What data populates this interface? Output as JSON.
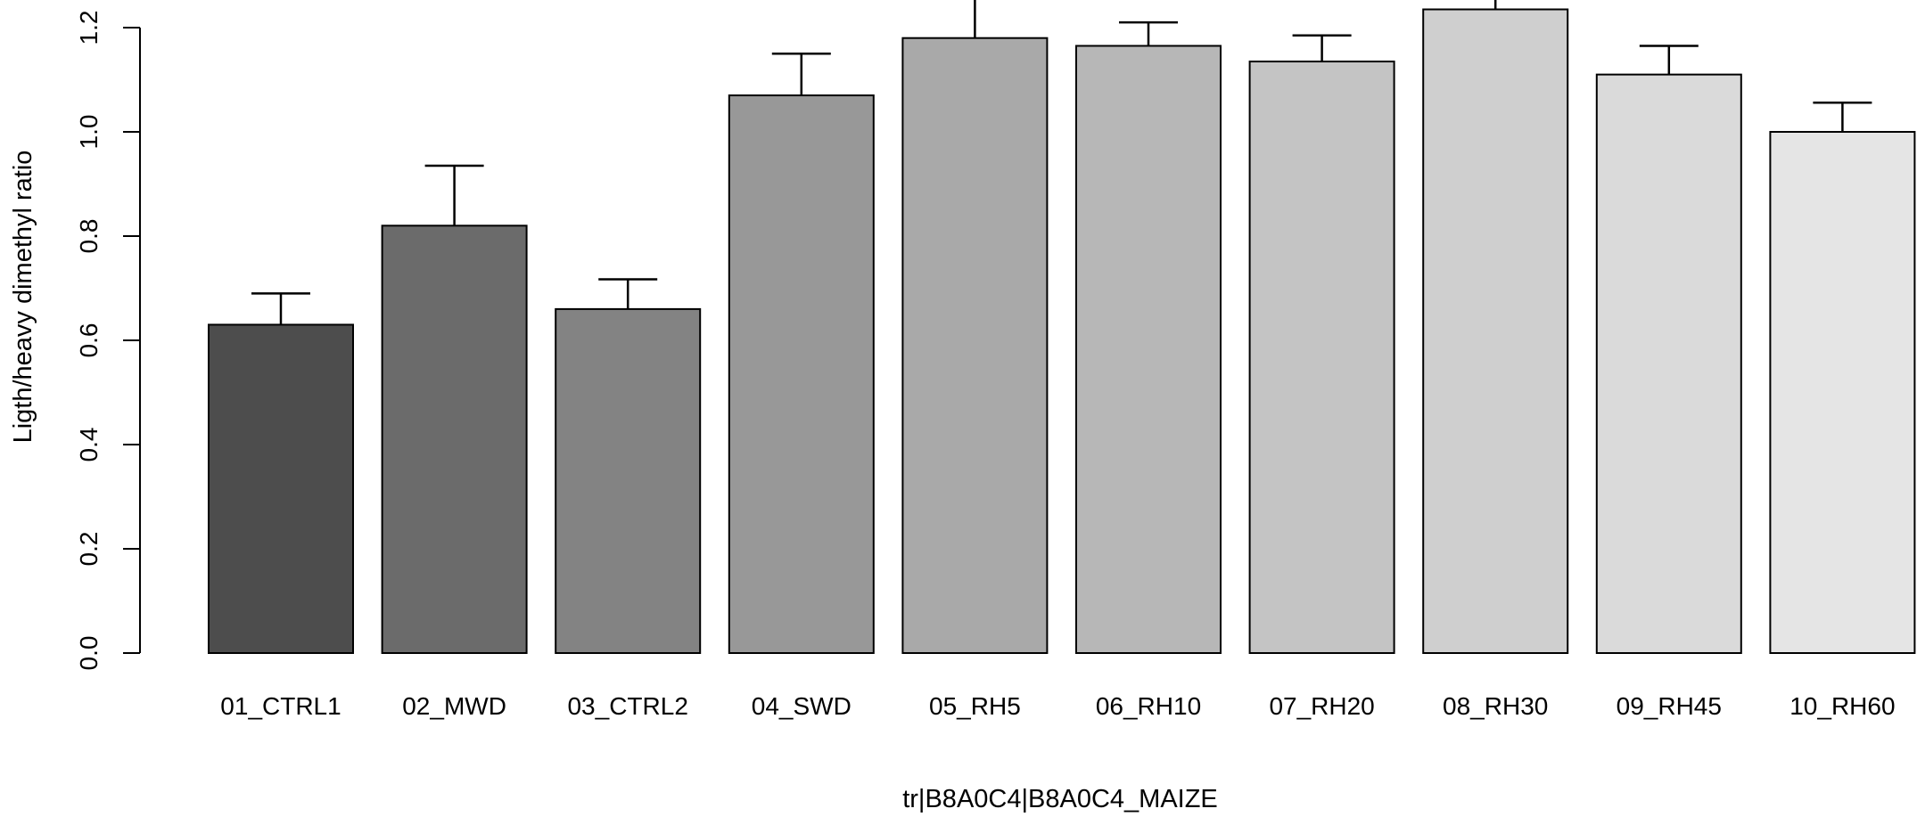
{
  "chart_data": {
    "type": "bar",
    "categories": [
      "01_CTRL1",
      "02_MWD",
      "03_CTRL2",
      "04_SWD",
      "05_RH5",
      "06_RH10",
      "07_RH20",
      "08_RH30",
      "09_RH45",
      "10_RH60"
    ],
    "values": [
      0.63,
      0.82,
      0.66,
      1.07,
      1.18,
      1.165,
      1.135,
      1.235,
      1.11,
      1.0
    ],
    "error_upper": [
      0.69,
      0.935,
      0.717,
      1.15,
      1.27,
      1.21,
      1.185,
      1.29,
      1.165,
      1.056
    ],
    "bar_colors": [
      "#4d4d4d",
      "#6b6b6b",
      "#838383",
      "#989898",
      "#a9a9a9",
      "#b7b7b7",
      "#c4c4c4",
      "#cfcfcf",
      "#dadada",
      "#e5e5e5"
    ],
    "xlabel": "tr|B8A0C4|B8A0C4_MAIZE",
    "ylabel": "Ligth/heavy dimethyl ratio",
    "yticks": [
      0.0,
      0.2,
      0.4,
      0.6,
      0.8,
      1.0,
      1.2
    ],
    "ytick_labels": [
      "0.0",
      "0.2",
      "0.4",
      "0.6",
      "0.8",
      "1.0",
      "1.2"
    ],
    "ylim": [
      0,
      1.25
    ],
    "grid": false,
    "legend": "none"
  }
}
